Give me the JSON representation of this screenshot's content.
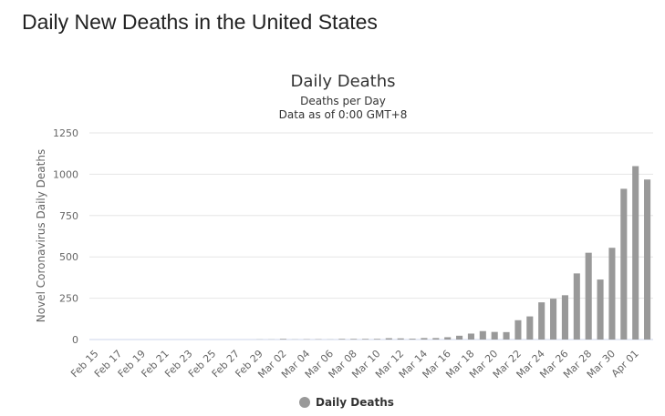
{
  "page": {
    "heading": "Daily New Deaths in the United States"
  },
  "colors": {
    "bar": "#999999",
    "grid": "#e6e6e6",
    "axis_line": "#ccd6eb"
  },
  "chart_data": {
    "type": "bar",
    "title": "Daily Deaths",
    "subtitle_lines": [
      "Deaths per Day",
      "Data as of 0:00 GMT+8"
    ],
    "ylabel": "Novel Coronavirus Daily Deaths",
    "xlabel": "",
    "ylim": [
      0,
      1250
    ],
    "yticks": [
      0,
      250,
      500,
      750,
      1000,
      1250
    ],
    "grid": true,
    "legend_position": "bottom-center",
    "x_tick_labels": [
      "Feb 15",
      "Feb 17",
      "Feb 19",
      "Feb 21",
      "Feb 23",
      "Feb 25",
      "Feb 27",
      "Feb 29",
      "Mar 02",
      "Mar 04",
      "Mar 06",
      "Mar 08",
      "Mar 10",
      "Mar 12",
      "Mar 14",
      "Mar 16",
      "Mar 18",
      "Mar 20",
      "Mar 22",
      "Mar 24",
      "Mar 26",
      "Mar 28",
      "Mar 30",
      "Apr 01"
    ],
    "categories": [
      "Feb 15",
      "Feb 16",
      "Feb 17",
      "Feb 18",
      "Feb 19",
      "Feb 20",
      "Feb 21",
      "Feb 22",
      "Feb 23",
      "Feb 24",
      "Feb 25",
      "Feb 26",
      "Feb 27",
      "Feb 28",
      "Feb 29",
      "Mar 01",
      "Mar 02",
      "Mar 03",
      "Mar 04",
      "Mar 05",
      "Mar 06",
      "Mar 07",
      "Mar 08",
      "Mar 09",
      "Mar 10",
      "Mar 11",
      "Mar 12",
      "Mar 13",
      "Mar 14",
      "Mar 15",
      "Mar 16",
      "Mar 17",
      "Mar 18",
      "Mar 19",
      "Mar 20",
      "Mar 21",
      "Mar 22",
      "Mar 23",
      "Mar 24",
      "Mar 25",
      "Mar 26",
      "Mar 27",
      "Mar 28",
      "Mar 29",
      "Mar 30",
      "Mar 31",
      "Apr 01",
      "Apr 02"
    ],
    "series": [
      {
        "name": "Daily Deaths",
        "values": [
          0,
          0,
          0,
          0,
          0,
          0,
          0,
          0,
          0,
          0,
          0,
          0,
          0,
          0,
          1,
          1,
          4,
          1,
          2,
          2,
          1,
          4,
          4,
          4,
          4,
          8,
          7,
          5,
          9,
          9,
          14,
          23,
          36,
          51,
          46,
          45,
          117,
          140,
          225,
          247,
          268,
          400,
          525,
          363,
          555,
          912,
          1049,
          968
        ]
      }
    ]
  }
}
